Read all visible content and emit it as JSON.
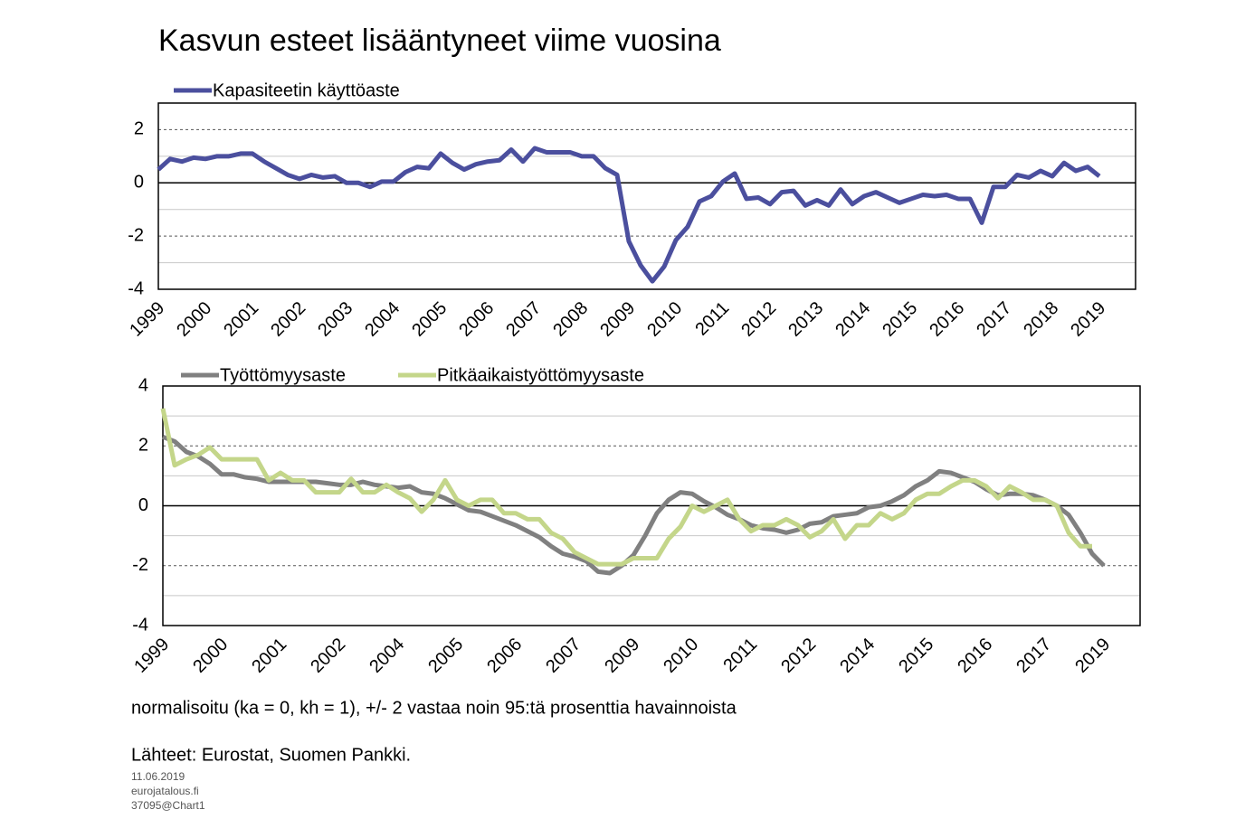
{
  "title": "Kasvun esteet lisääntyneet viime vuosina",
  "note": "normalisoitu (ka = 0, kh = 1), +/- 2 vastaa noin 95:tä prosenttia havainnoista",
  "source": "Lähteet: Eurostat, Suomen Pankki.",
  "footer": [
    "11.06.2019",
    "eurojatalous.fi",
    "37095@Chart1"
  ],
  "chart_data": [
    {
      "type": "line",
      "legend": "top-left",
      "categories": [
        "1999",
        null,
        null,
        null,
        "2000",
        null,
        null,
        null,
        "2001",
        null,
        null,
        null,
        "2002",
        null,
        null,
        null,
        "2003",
        null,
        null,
        null,
        "2004",
        null,
        null,
        null,
        "2005",
        null,
        null,
        null,
        "2006",
        null,
        null,
        null,
        "2007",
        null,
        null,
        null,
        "2008",
        null,
        null,
        null,
        "2009",
        null,
        null,
        null,
        "2010",
        null,
        null,
        null,
        "2011",
        null,
        null,
        null,
        "2012",
        null,
        null,
        null,
        "2013",
        null,
        null,
        null,
        "2014",
        null,
        null,
        null,
        "2015",
        null,
        null,
        null,
        "2016",
        null,
        null,
        null,
        "2017",
        null,
        null,
        null,
        "2018",
        null,
        null,
        null,
        "2019"
      ],
      "series": [
        {
          "name": "Kapasiteetin käyttöaste",
          "color": "#4b4f9e",
          "values": [
            0.5,
            0.9,
            0.8,
            0.95,
            0.9,
            1.0,
            1.0,
            1.1,
            1.1,
            0.8,
            0.55,
            0.3,
            0.15,
            0.3,
            0.2,
            0.25,
            0.0,
            0.0,
            -0.15,
            0.05,
            0.05,
            0.4,
            0.6,
            0.55,
            1.1,
            0.75,
            0.5,
            0.7,
            0.8,
            0.85,
            1.25,
            0.8,
            1.3,
            1.15,
            1.15,
            1.15,
            1.0,
            1.0,
            0.55,
            0.3,
            -2.2,
            -3.1,
            -3.7,
            -3.15,
            -2.15,
            -1.65,
            -0.7,
            -0.5,
            0.05,
            0.35,
            -0.6,
            -0.55,
            -0.8,
            -0.35,
            -0.3,
            -0.85,
            -0.65,
            -0.85,
            -0.25,
            -0.8,
            -0.5,
            -0.35,
            -0.55,
            -0.75,
            -0.6,
            -0.45,
            -0.5,
            -0.45,
            -0.6,
            -0.6,
            -1.5,
            -0.15,
            -0.15,
            0.3,
            0.2,
            0.45,
            0.25,
            0.75,
            0.45,
            0.6,
            0.25
          ]
        }
      ],
      "ylim": [
        -4,
        3
      ],
      "yticks": [
        -4,
        -2,
        0,
        2
      ],
      "minor_yticks": [
        -3,
        -1,
        1
      ],
      "grid": true
    },
    {
      "type": "line",
      "legend": "top-left",
      "categories": [
        "1999",
        null,
        null,
        null,
        null,
        "2000",
        null,
        null,
        null,
        null,
        "2001",
        null,
        null,
        null,
        null,
        "2002",
        null,
        null,
        null,
        null,
        "2004",
        null,
        null,
        null,
        null,
        "2005",
        null,
        null,
        null,
        null,
        "2006",
        null,
        null,
        null,
        null,
        "2007",
        null,
        null,
        null,
        null,
        "2009",
        null,
        null,
        null,
        null,
        "2010",
        null,
        null,
        null,
        null,
        "2011",
        null,
        null,
        null,
        null,
        "2012",
        null,
        null,
        null,
        null,
        "2014",
        null,
        null,
        null,
        null,
        "2015",
        null,
        null,
        null,
        null,
        "2016",
        null,
        null,
        null,
        null,
        "2017",
        null,
        null,
        null,
        null,
        "2019"
      ],
      "series": [
        {
          "name": "Työttömyysaste",
          "color": "#808080",
          "values": [
            2.3,
            2.15,
            1.8,
            1.65,
            1.4,
            1.05,
            1.05,
            0.95,
            0.9,
            0.8,
            0.8,
            0.8,
            0.8,
            0.8,
            0.75,
            0.7,
            0.7,
            0.8,
            0.7,
            0.65,
            0.6,
            0.65,
            0.45,
            0.4,
            0.25,
            0.05,
            -0.15,
            -0.2,
            -0.35,
            -0.5,
            -0.65,
            -0.85,
            -1.05,
            -1.35,
            -1.6,
            -1.7,
            -1.85,
            -2.2,
            -2.25,
            -2.0,
            -1.65,
            -1.0,
            -0.25,
            0.2,
            0.45,
            0.4,
            0.15,
            -0.05,
            -0.3,
            -0.45,
            -0.65,
            -0.75,
            -0.8,
            -0.9,
            -0.8,
            -0.6,
            -0.55,
            -0.35,
            -0.3,
            -0.25,
            -0.05,
            0.0,
            0.15,
            0.35,
            0.65,
            0.85,
            1.15,
            1.1,
            0.95,
            0.8,
            0.55,
            0.35,
            0.4,
            0.4,
            0.35,
            0.2,
            0.0,
            -0.3,
            -0.9,
            -1.6,
            -2.0
          ]
        },
        {
          "name": "Pitkäaikaistyöttömyysaste",
          "color": "#c4d68a",
          "values": [
            3.25,
            1.35,
            1.55,
            1.7,
            1.95,
            1.55,
            1.55,
            1.55,
            1.55,
            0.85,
            1.1,
            0.85,
            0.85,
            0.45,
            0.45,
            0.45,
            0.9,
            0.45,
            0.45,
            0.7,
            0.45,
            0.25,
            -0.2,
            0.2,
            0.85,
            0.2,
            0.0,
            0.2,
            0.2,
            -0.25,
            -0.25,
            -0.45,
            -0.45,
            -0.9,
            -1.1,
            -1.55,
            -1.75,
            -1.95,
            -1.95,
            -1.95,
            -1.75,
            -1.75,
            -1.75,
            -1.1,
            -0.7,
            0.0,
            -0.2,
            0.0,
            0.2,
            -0.45,
            -0.85,
            -0.65,
            -0.65,
            -0.45,
            -0.65,
            -1.05,
            -0.85,
            -0.45,
            -1.1,
            -0.65,
            -0.65,
            -0.25,
            -0.45,
            -0.25,
            0.2,
            0.4,
            0.4,
            0.65,
            0.85,
            0.85,
            0.65,
            0.25,
            0.65,
            0.45,
            0.2,
            0.2,
            0.0,
            -0.9,
            -1.35,
            -1.35,
            null
          ]
        }
      ],
      "ylim": [
        -4,
        4
      ],
      "yticks": [
        -4,
        -2,
        0,
        2,
        4
      ],
      "minor_yticks": [
        -3,
        -1,
        1,
        3
      ],
      "grid": true
    }
  ]
}
